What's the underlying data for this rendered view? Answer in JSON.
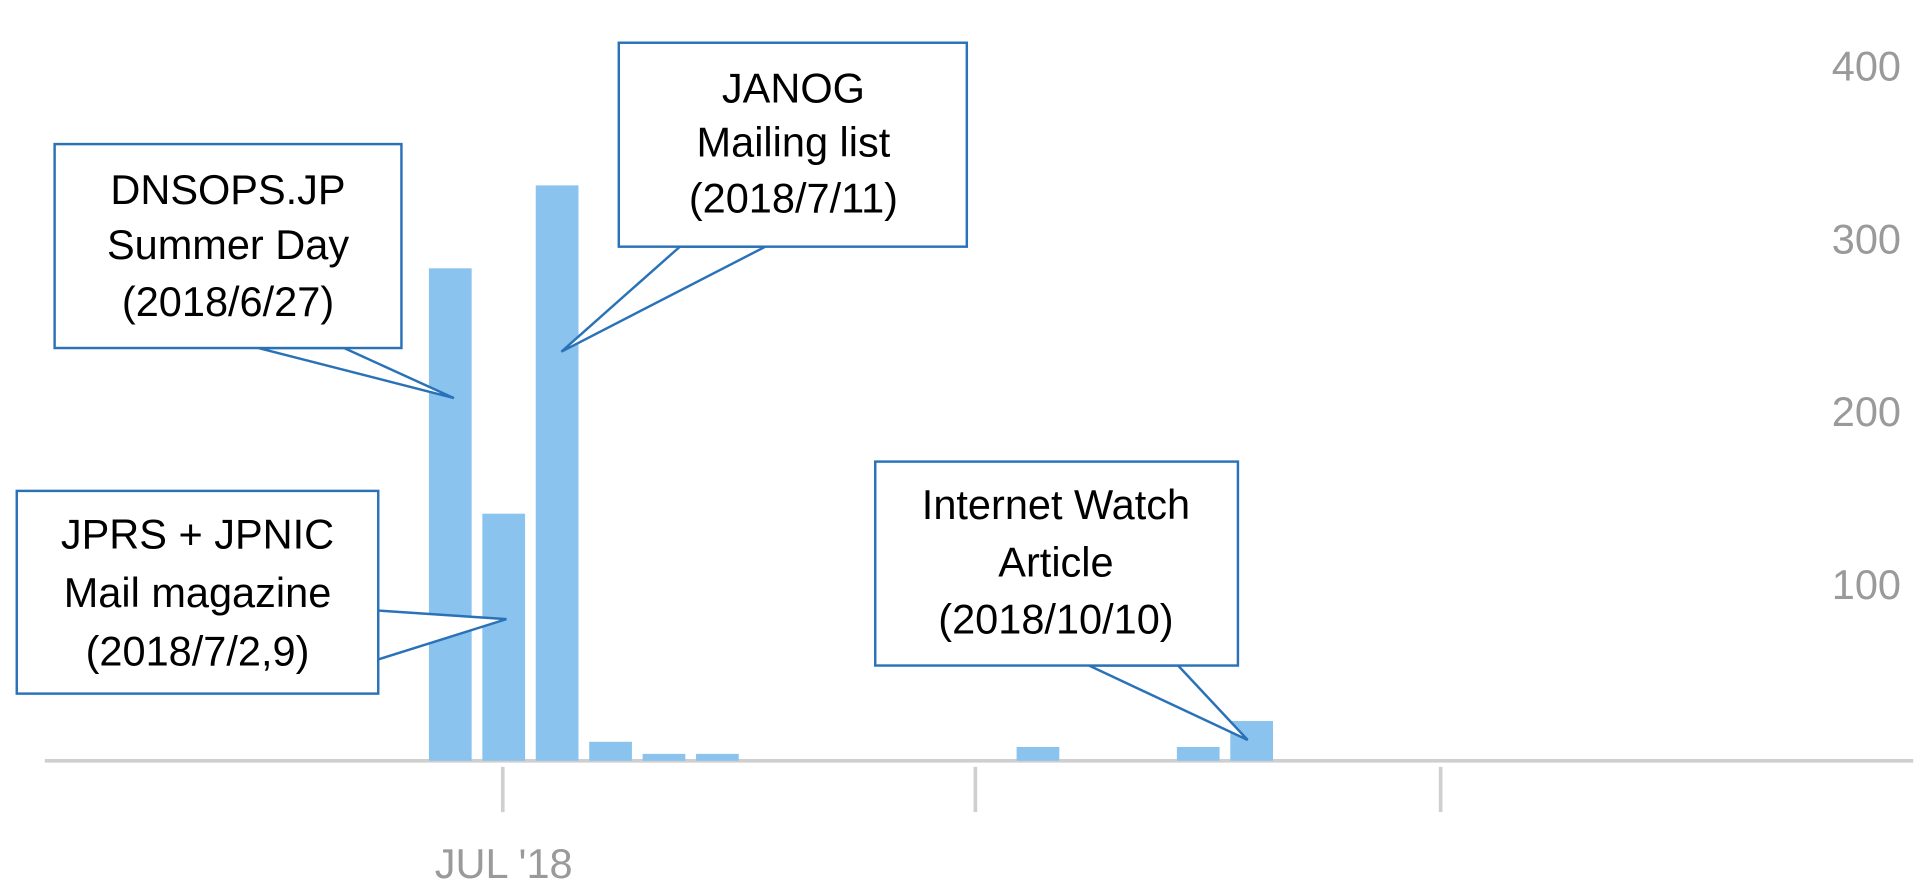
{
  "chart_data": {
    "type": "bar",
    "color": "#8ac4ee",
    "categories": [
      null,
      "JUL '18",
      null,
      null,
      null,
      null,
      null,
      null,
      null,
      null,
      null,
      null,
      null,
      null,
      null,
      null
    ],
    "values": [
      285,
      143,
      333,
      11,
      4,
      4,
      0,
      0,
      0,
      0,
      0,
      8,
      0,
      0,
      8,
      23
    ],
    "ylim": [
      0,
      400
    ],
    "yticks": [
      100,
      200,
      300,
      400
    ],
    "grid": false,
    "annotations": [
      {
        "lines": [
          "DNSOPS.JP",
          "Summer Day",
          "(2018/6/27)"
        ]
      },
      {
        "lines": [
          "JANOG",
          "Mailing list",
          "(2018/7/11)"
        ]
      },
      {
        "lines": [
          "JPRS + JPNIC",
          "Mail magazine",
          "(2018/7/2,9)"
        ]
      },
      {
        "lines": [
          "Internet Watch",
          "Article",
          "(2018/10/10)"
        ]
      }
    ]
  }
}
